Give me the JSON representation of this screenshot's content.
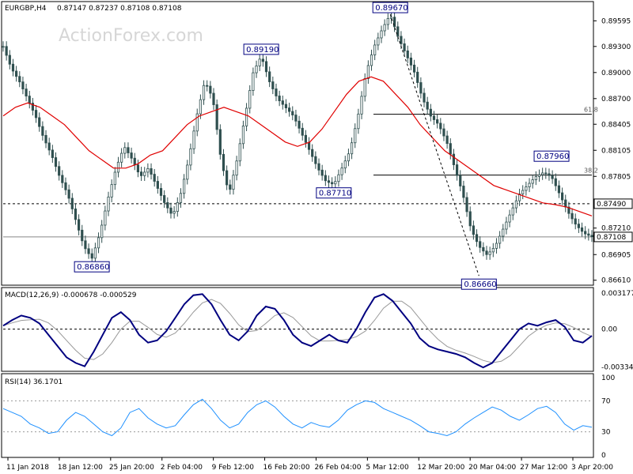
{
  "header": {
    "symbol": "EURGBP,H4",
    "ohlc": "0.87147 0.87237 0.87108 0.87108"
  },
  "watermark": "ActionForex.com",
  "chart_data": [
    {
      "type": "candlestick",
      "title": "EURGBP,H4",
      "y_ticks": [
        "0.89595",
        "0.89300",
        "0.89000",
        "0.88700",
        "0.88405",
        "0.88105",
        "0.87805",
        "0.87210",
        "0.86905",
        "0.86610"
      ],
      "ylim": [
        0.8658,
        0.8978
      ],
      "x_ticks": [
        "11 Jan 2018",
        "18 Jan 12:00",
        "25 Jan 20:00",
        "2 Feb 04:00",
        "9 Feb 12:00",
        "16 Feb 20:00",
        "26 Feb 04:00",
        "5 Mar 12:00",
        "12 Mar 20:00",
        "20 Mar 04:00",
        "27 Mar 12:00",
        "3 Apr 20:00"
      ],
      "close_series": [
        0.893,
        0.8905,
        0.889,
        0.887,
        0.885,
        0.8825,
        0.8805,
        0.878,
        0.876,
        0.873,
        0.87,
        0.8686,
        0.8715,
        0.8755,
        0.879,
        0.8815,
        0.88,
        0.878,
        0.879,
        0.877,
        0.875,
        0.8735,
        0.876,
        0.88,
        0.885,
        0.889,
        0.887,
        0.88,
        0.876,
        0.88,
        0.885,
        0.89,
        0.8919,
        0.889,
        0.887,
        0.886,
        0.885,
        0.883,
        0.881,
        0.879,
        0.8775,
        0.8771,
        0.879,
        0.881,
        0.885,
        0.89,
        0.893,
        0.895,
        0.8967,
        0.894,
        0.892,
        0.89,
        0.887,
        0.885,
        0.884,
        0.882,
        0.879,
        0.876,
        0.872,
        0.87,
        0.869,
        0.87,
        0.872,
        0.874,
        0.876,
        0.877,
        0.878,
        0.8785,
        0.878,
        0.876,
        0.874,
        0.8725,
        0.8715,
        0.8711
      ],
      "moving_average": [
        0.885,
        0.886,
        0.8865,
        0.886,
        0.885,
        0.884,
        0.8825,
        0.881,
        0.88,
        0.879,
        0.879,
        0.8795,
        0.8805,
        0.881,
        0.8825,
        0.884,
        0.885,
        0.8855,
        0.886,
        0.8855,
        0.885,
        0.884,
        0.883,
        0.882,
        0.8815,
        0.882,
        0.8835,
        0.8855,
        0.8875,
        0.889,
        0.8895,
        0.889,
        0.8875,
        0.886,
        0.884,
        0.8825,
        0.881,
        0.88,
        0.879,
        0.878,
        0.877,
        0.8765,
        0.876,
        0.8755,
        0.875,
        0.8748,
        0.8745,
        0.874,
        0.8735
      ],
      "series": [
        {
          "name": "",
          "values": []
        }
      ],
      "annotations": [
        {
          "text": "0.89670",
          "price": 0.8967
        },
        {
          "text": "0.89190",
          "price": 0.8919
        },
        {
          "text": "0.87710",
          "price": 0.8771
        },
        {
          "text": "0.86860",
          "price": 0.8686
        },
        {
          "text": "0.86660",
          "price": 0.8666
        },
        {
          "text": "0.87960",
          "price": 0.8796
        }
      ],
      "fib_levels": [
        {
          "text": "61.8",
          "price": 0.8852
        },
        {
          "text": "38.2",
          "price": 0.8782
        }
      ],
      "price_markers": [
        {
          "text": "0.87490",
          "price": 0.8749
        },
        {
          "text": "0.87108",
          "price": 0.87108
        }
      ]
    },
    {
      "type": "line",
      "title": "MACD(12,26,9) -0.000678 -0.000529",
      "y_ticks": [
        "0.003177",
        "0.00",
        "-0.003344"
      ],
      "ylim": [
        -0.0036,
        0.0034
      ],
      "macd": [
        0.0003,
        0.0008,
        0.0012,
        0.001,
        0.0005,
        -0.0005,
        -0.0015,
        -0.0025,
        -0.003,
        -0.0033,
        -0.002,
        -0.0005,
        0.001,
        0.0015,
        0.0008,
        -0.0005,
        -0.0012,
        -0.001,
        -0.0002,
        0.001,
        0.0022,
        0.003,
        0.0031,
        0.0022,
        0.0008,
        -0.0005,
        -0.001,
        -0.0002,
        0.0012,
        0.002,
        0.0018,
        0.0008,
        -0.0005,
        -0.0012,
        -0.0015,
        -0.001,
        -0.0005,
        -0.001,
        -0.0012,
        0.0,
        0.0015,
        0.0028,
        0.0031,
        0.0025,
        0.0015,
        0.0005,
        -0.0008,
        -0.0015,
        -0.0018,
        -0.002,
        -0.0022,
        -0.0025,
        -0.003,
        -0.0034,
        -0.003,
        -0.002,
        -0.001,
        0.0,
        0.0005,
        0.0003,
        0.0006,
        0.0008,
        0.0002,
        -0.001,
        -0.0012,
        -0.0006
      ]
    },
    {
      "type": "line",
      "title": "RSI(14) 36.1701",
      "y_ticks": [
        "100",
        "70",
        "30",
        "0"
      ],
      "ylim": [
        0,
        100
      ],
      "rsi": [
        60,
        55,
        50,
        40,
        35,
        28,
        30,
        45,
        55,
        50,
        40,
        30,
        25,
        35,
        55,
        60,
        48,
        40,
        35,
        38,
        52,
        65,
        72,
        60,
        45,
        35,
        40,
        55,
        65,
        70,
        62,
        50,
        40,
        35,
        42,
        38,
        36,
        45,
        58,
        65,
        70,
        68,
        60,
        55,
        50,
        45,
        38,
        30,
        28,
        25,
        30,
        40,
        48,
        55,
        62,
        58,
        50,
        45,
        52,
        60,
        63,
        55,
        40,
        32,
        38,
        36
      ]
    }
  ]
}
